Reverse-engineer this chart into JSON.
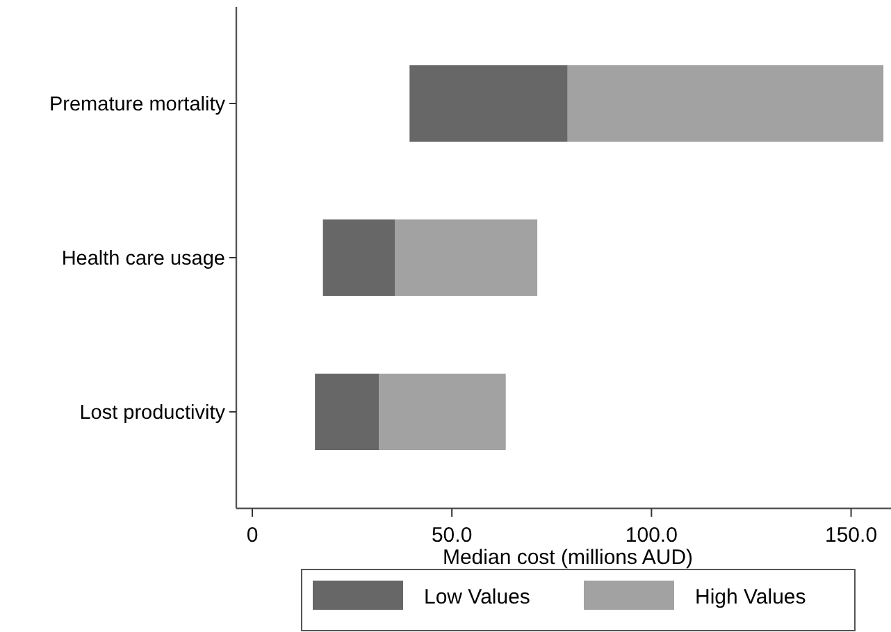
{
  "chart_data": {
    "type": "bar",
    "orientation": "horizontal",
    "xlabel": "Median cost (millions AUD)",
    "categories": [
      "Premature mortality",
      "Health care usage",
      "Lost productivity"
    ],
    "series": [
      {
        "name": "Low Values",
        "color": "#676767",
        "base": [
          39.4,
          17.7,
          15.7
        ],
        "values": [
          39.6,
          18.0,
          16.0
        ]
      },
      {
        "name": "High Values",
        "color": "#a2a2a2",
        "base": [
          79.0,
          35.7,
          31.7
        ],
        "values": [
          79.1,
          35.7,
          31.8
        ]
      }
    ],
    "xlim": [
      -4,
      160
    ],
    "xticks": [
      0,
      {
        "value": 50,
        "label": "50.0"
      },
      {
        "value": 100,
        "label": "100.0"
      },
      {
        "value": 150,
        "label": "150.0"
      }
    ],
    "legend": "bottom"
  }
}
